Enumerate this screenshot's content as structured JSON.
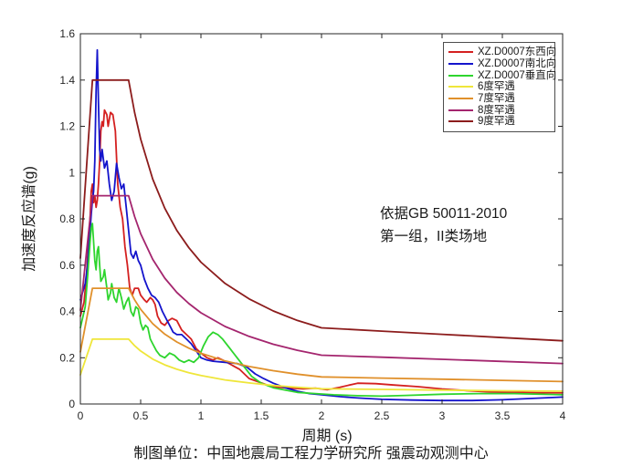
{
  "chart_data": {
    "type": "line",
    "title": "",
    "xlabel": "周期 (s)",
    "ylabel": "加速度反应谱(g)",
    "caption": "制图单位：中国地震局工程力学研究所 强震动观测中心",
    "annotation_line1": "依据GB 50011-2010",
    "annotation_line2": "第一组，II类场地",
    "xlim": [
      0,
      4
    ],
    "ylim": [
      0,
      1.6
    ],
    "x_ticks": [
      "0",
      "0.5",
      "1",
      "1.5",
      "2",
      "2.5",
      "3",
      "3.5",
      "4"
    ],
    "y_ticks": [
      "0",
      "0.2",
      "0.4",
      "0.6",
      "0.8",
      "1",
      "1.2",
      "1.4",
      "1.6"
    ],
    "grid": false,
    "legend_position": "top-right-inside",
    "axis_color": "#262626",
    "series": [
      {
        "name": "XZ.D0007东西向",
        "color": "#d42020",
        "width": 1.8,
        "points": [
          [
            0,
            0.38
          ],
          [
            0.03,
            0.44
          ],
          [
            0.05,
            0.55
          ],
          [
            0.07,
            0.72
          ],
          [
            0.08,
            0.8
          ],
          [
            0.09,
            0.92
          ],
          [
            0.1,
            0.95
          ],
          [
            0.11,
            0.87
          ],
          [
            0.12,
            0.9
          ],
          [
            0.13,
            0.85
          ],
          [
            0.14,
            0.88
          ],
          [
            0.15,
            0.95
          ],
          [
            0.16,
            1.05
          ],
          [
            0.17,
            1.18
          ],
          [
            0.18,
            1.22
          ],
          [
            0.19,
            1.2
          ],
          [
            0.2,
            1.27
          ],
          [
            0.22,
            1.25
          ],
          [
            0.23,
            1.2
          ],
          [
            0.25,
            1.26
          ],
          [
            0.27,
            1.25
          ],
          [
            0.29,
            1.18
          ],
          [
            0.31,
            0.95
          ],
          [
            0.33,
            0.85
          ],
          [
            0.35,
            0.8
          ],
          [
            0.37,
            0.68
          ],
          [
            0.39,
            0.6
          ],
          [
            0.41,
            0.5
          ],
          [
            0.43,
            0.47
          ],
          [
            0.45,
            0.5
          ],
          [
            0.48,
            0.5
          ],
          [
            0.5,
            0.47
          ],
          [
            0.53,
            0.45
          ],
          [
            0.55,
            0.44
          ],
          [
            0.58,
            0.46
          ],
          [
            0.6,
            0.45
          ],
          [
            0.62,
            0.43
          ],
          [
            0.64,
            0.38
          ],
          [
            0.67,
            0.35
          ],
          [
            0.7,
            0.34
          ],
          [
            0.73,
            0.36
          ],
          [
            0.76,
            0.37
          ],
          [
            0.8,
            0.36
          ],
          [
            0.84,
            0.32
          ],
          [
            0.88,
            0.3
          ],
          [
            0.92,
            0.28
          ],
          [
            0.96,
            0.24
          ],
          [
            1,
            0.22
          ],
          [
            1.05,
            0.2
          ],
          [
            1.1,
            0.19
          ],
          [
            1.14,
            0.2
          ],
          [
            1.18,
            0.19
          ],
          [
            1.25,
            0.17
          ],
          [
            1.32,
            0.15
          ],
          [
            1.4,
            0.11
          ],
          [
            1.48,
            0.095
          ],
          [
            1.56,
            0.08
          ],
          [
            1.65,
            0.072
          ],
          [
            1.75,
            0.068
          ],
          [
            1.85,
            0.066
          ],
          [
            1.95,
            0.068
          ],
          [
            2.05,
            0.062
          ],
          [
            2.15,
            0.072
          ],
          [
            2.3,
            0.09
          ],
          [
            2.45,
            0.088
          ],
          [
            2.6,
            0.082
          ],
          [
            2.8,
            0.075
          ],
          [
            3,
            0.065
          ],
          [
            3.2,
            0.058
          ],
          [
            3.4,
            0.052
          ],
          [
            3.6,
            0.05
          ],
          [
            3.8,
            0.049
          ],
          [
            4,
            0.048
          ]
        ]
      },
      {
        "name": "XZ.D0007南北向",
        "color": "#1414cc",
        "width": 1.8,
        "points": [
          [
            0,
            0.45
          ],
          [
            0.04,
            0.52
          ],
          [
            0.06,
            0.6
          ],
          [
            0.08,
            0.75
          ],
          [
            0.09,
            0.82
          ],
          [
            0.1,
            0.88
          ],
          [
            0.11,
            0.92
          ],
          [
            0.12,
            1.05
          ],
          [
            0.13,
            1.35
          ],
          [
            0.14,
            1.53
          ],
          [
            0.15,
            1.3
          ],
          [
            0.16,
            1.1
          ],
          [
            0.17,
            1.05
          ],
          [
            0.18,
            1.1
          ],
          [
            0.19,
            1.06
          ],
          [
            0.2,
            1.02
          ],
          [
            0.22,
            1.05
          ],
          [
            0.24,
            0.95
          ],
          [
            0.26,
            0.88
          ],
          [
            0.28,
            0.92
          ],
          [
            0.3,
            1.04
          ],
          [
            0.32,
            0.98
          ],
          [
            0.34,
            0.93
          ],
          [
            0.36,
            0.95
          ],
          [
            0.38,
            0.85
          ],
          [
            0.4,
            0.75
          ],
          [
            0.42,
            0.65
          ],
          [
            0.44,
            0.63
          ],
          [
            0.46,
            0.66
          ],
          [
            0.48,
            0.62
          ],
          [
            0.5,
            0.6
          ],
          [
            0.53,
            0.54
          ],
          [
            0.56,
            0.5
          ],
          [
            0.59,
            0.47
          ],
          [
            0.62,
            0.46
          ],
          [
            0.65,
            0.44
          ],
          [
            0.68,
            0.4
          ],
          [
            0.71,
            0.37
          ],
          [
            0.74,
            0.34
          ],
          [
            0.77,
            0.31
          ],
          [
            0.8,
            0.3
          ],
          [
            0.84,
            0.3
          ],
          [
            0.88,
            0.28
          ],
          [
            0.92,
            0.26
          ],
          [
            0.96,
            0.23
          ],
          [
            1,
            0.2
          ],
          [
            1.05,
            0.19
          ],
          [
            1.1,
            0.185
          ],
          [
            1.2,
            0.18
          ],
          [
            1.3,
            0.175
          ],
          [
            1.38,
            0.16
          ],
          [
            1.45,
            0.13
          ],
          [
            1.52,
            0.11
          ],
          [
            1.6,
            0.09
          ],
          [
            1.7,
            0.07
          ],
          [
            1.8,
            0.055
          ],
          [
            1.9,
            0.045
          ],
          [
            2,
            0.04
          ],
          [
            2.15,
            0.032
          ],
          [
            2.3,
            0.026
          ],
          [
            2.5,
            0.02
          ],
          [
            2.75,
            0.017
          ],
          [
            3,
            0.015
          ],
          [
            3.25,
            0.015
          ],
          [
            3.5,
            0.018
          ],
          [
            3.75,
            0.024
          ],
          [
            4,
            0.03
          ]
        ]
      },
      {
        "name": "XZ.D0007垂直向",
        "color": "#2ed52e",
        "width": 1.8,
        "points": [
          [
            0,
            0.33
          ],
          [
            0.04,
            0.42
          ],
          [
            0.06,
            0.55
          ],
          [
            0.08,
            0.7
          ],
          [
            0.09,
            0.76
          ],
          [
            0.1,
            0.78
          ],
          [
            0.11,
            0.7
          ],
          [
            0.12,
            0.62
          ],
          [
            0.13,
            0.58
          ],
          [
            0.14,
            0.66
          ],
          [
            0.15,
            0.68
          ],
          [
            0.16,
            0.6
          ],
          [
            0.17,
            0.53
          ],
          [
            0.19,
            0.55
          ],
          [
            0.2,
            0.58
          ],
          [
            0.22,
            0.5
          ],
          [
            0.23,
            0.45
          ],
          [
            0.25,
            0.48
          ],
          [
            0.26,
            0.52
          ],
          [
            0.28,
            0.46
          ],
          [
            0.3,
            0.44
          ],
          [
            0.32,
            0.5
          ],
          [
            0.34,
            0.46
          ],
          [
            0.36,
            0.41
          ],
          [
            0.38,
            0.44
          ],
          [
            0.4,
            0.46
          ],
          [
            0.42,
            0.4
          ],
          [
            0.44,
            0.38
          ],
          [
            0.46,
            0.42
          ],
          [
            0.48,
            0.41
          ],
          [
            0.5,
            0.35
          ],
          [
            0.52,
            0.32
          ],
          [
            0.54,
            0.34
          ],
          [
            0.56,
            0.33
          ],
          [
            0.58,
            0.28
          ],
          [
            0.6,
            0.26
          ],
          [
            0.63,
            0.23
          ],
          [
            0.66,
            0.21
          ],
          [
            0.7,
            0.2
          ],
          [
            0.74,
            0.22
          ],
          [
            0.78,
            0.21
          ],
          [
            0.82,
            0.19
          ],
          [
            0.86,
            0.18
          ],
          [
            0.9,
            0.19
          ],
          [
            0.94,
            0.18
          ],
          [
            0.98,
            0.2
          ],
          [
            1.02,
            0.25
          ],
          [
            1.06,
            0.29
          ],
          [
            1.1,
            0.31
          ],
          [
            1.14,
            0.3
          ],
          [
            1.18,
            0.28
          ],
          [
            1.24,
            0.24
          ],
          [
            1.3,
            0.2
          ],
          [
            1.36,
            0.16
          ],
          [
            1.42,
            0.12
          ],
          [
            1.5,
            0.09
          ],
          [
            1.6,
            0.07
          ],
          [
            1.7,
            0.06
          ],
          [
            1.8,
            0.05
          ],
          [
            1.95,
            0.045
          ],
          [
            2.1,
            0.04
          ],
          [
            2.3,
            0.036
          ],
          [
            2.5,
            0.034
          ],
          [
            2.7,
            0.037
          ],
          [
            3,
            0.042
          ],
          [
            3.3,
            0.045
          ],
          [
            3.6,
            0.045
          ],
          [
            4,
            0.04
          ]
        ]
      },
      {
        "name": "6度罕遇",
        "color": "#efe63a",
        "width": 1.8,
        "points": [
          [
            0,
            0.126
          ],
          [
            0.1,
            0.28
          ],
          [
            0.4,
            0.28
          ],
          [
            0.45,
            0.252
          ],
          [
            0.5,
            0.229
          ],
          [
            0.6,
            0.194
          ],
          [
            0.7,
            0.169
          ],
          [
            0.8,
            0.15
          ],
          [
            0.9,
            0.135
          ],
          [
            1,
            0.123
          ],
          [
            1.2,
            0.104
          ],
          [
            1.4,
            0.091
          ],
          [
            1.6,
            0.08
          ],
          [
            1.8,
            0.072
          ],
          [
            2,
            0.066
          ],
          [
            2.5,
            0.063
          ],
          [
            3,
            0.06
          ],
          [
            3.5,
            0.057
          ],
          [
            4,
            0.055
          ]
        ]
      },
      {
        "name": "7度罕遇",
        "color": "#e0902b",
        "width": 1.8,
        "points": [
          [
            0,
            0.225
          ],
          [
            0.1,
            0.5
          ],
          [
            0.4,
            0.5
          ],
          [
            0.45,
            0.45
          ],
          [
            0.5,
            0.409
          ],
          [
            0.6,
            0.347
          ],
          [
            0.7,
            0.302
          ],
          [
            0.8,
            0.268
          ],
          [
            0.9,
            0.241
          ],
          [
            1,
            0.219
          ],
          [
            1.2,
            0.186
          ],
          [
            1.4,
            0.162
          ],
          [
            1.6,
            0.144
          ],
          [
            1.8,
            0.129
          ],
          [
            2,
            0.117
          ],
          [
            2.5,
            0.112
          ],
          [
            3,
            0.107
          ],
          [
            3.5,
            0.102
          ],
          [
            4,
            0.097
          ]
        ]
      },
      {
        "name": "8度罕遇",
        "color": "#a4256e",
        "width": 1.8,
        "points": [
          [
            0,
            0.405
          ],
          [
            0.1,
            0.9
          ],
          [
            0.4,
            0.9
          ],
          [
            0.45,
            0.81
          ],
          [
            0.5,
            0.736
          ],
          [
            0.6,
            0.625
          ],
          [
            0.7,
            0.544
          ],
          [
            0.8,
            0.482
          ],
          [
            0.9,
            0.434
          ],
          [
            1,
            0.394
          ],
          [
            1.2,
            0.335
          ],
          [
            1.4,
            0.292
          ],
          [
            1.6,
            0.258
          ],
          [
            1.8,
            0.232
          ],
          [
            2,
            0.211
          ],
          [
            2.5,
            0.202
          ],
          [
            3,
            0.193
          ],
          [
            3.5,
            0.184
          ],
          [
            4,
            0.175
          ]
        ]
      },
      {
        "name": "9度罕遇",
        "color": "#8c1c1c",
        "width": 1.8,
        "points": [
          [
            0,
            0.63
          ],
          [
            0.1,
            1.4
          ],
          [
            0.4,
            1.4
          ],
          [
            0.45,
            1.259
          ],
          [
            0.5,
            1.145
          ],
          [
            0.6,
            0.972
          ],
          [
            0.7,
            0.846
          ],
          [
            0.8,
            0.75
          ],
          [
            0.9,
            0.675
          ],
          [
            1,
            0.613
          ],
          [
            1.2,
            0.521
          ],
          [
            1.4,
            0.454
          ],
          [
            1.6,
            0.402
          ],
          [
            1.8,
            0.361
          ],
          [
            2,
            0.329
          ],
          [
            2.5,
            0.315
          ],
          [
            3,
            0.301
          ],
          [
            3.5,
            0.287
          ],
          [
            4,
            0.273
          ]
        ]
      }
    ]
  }
}
